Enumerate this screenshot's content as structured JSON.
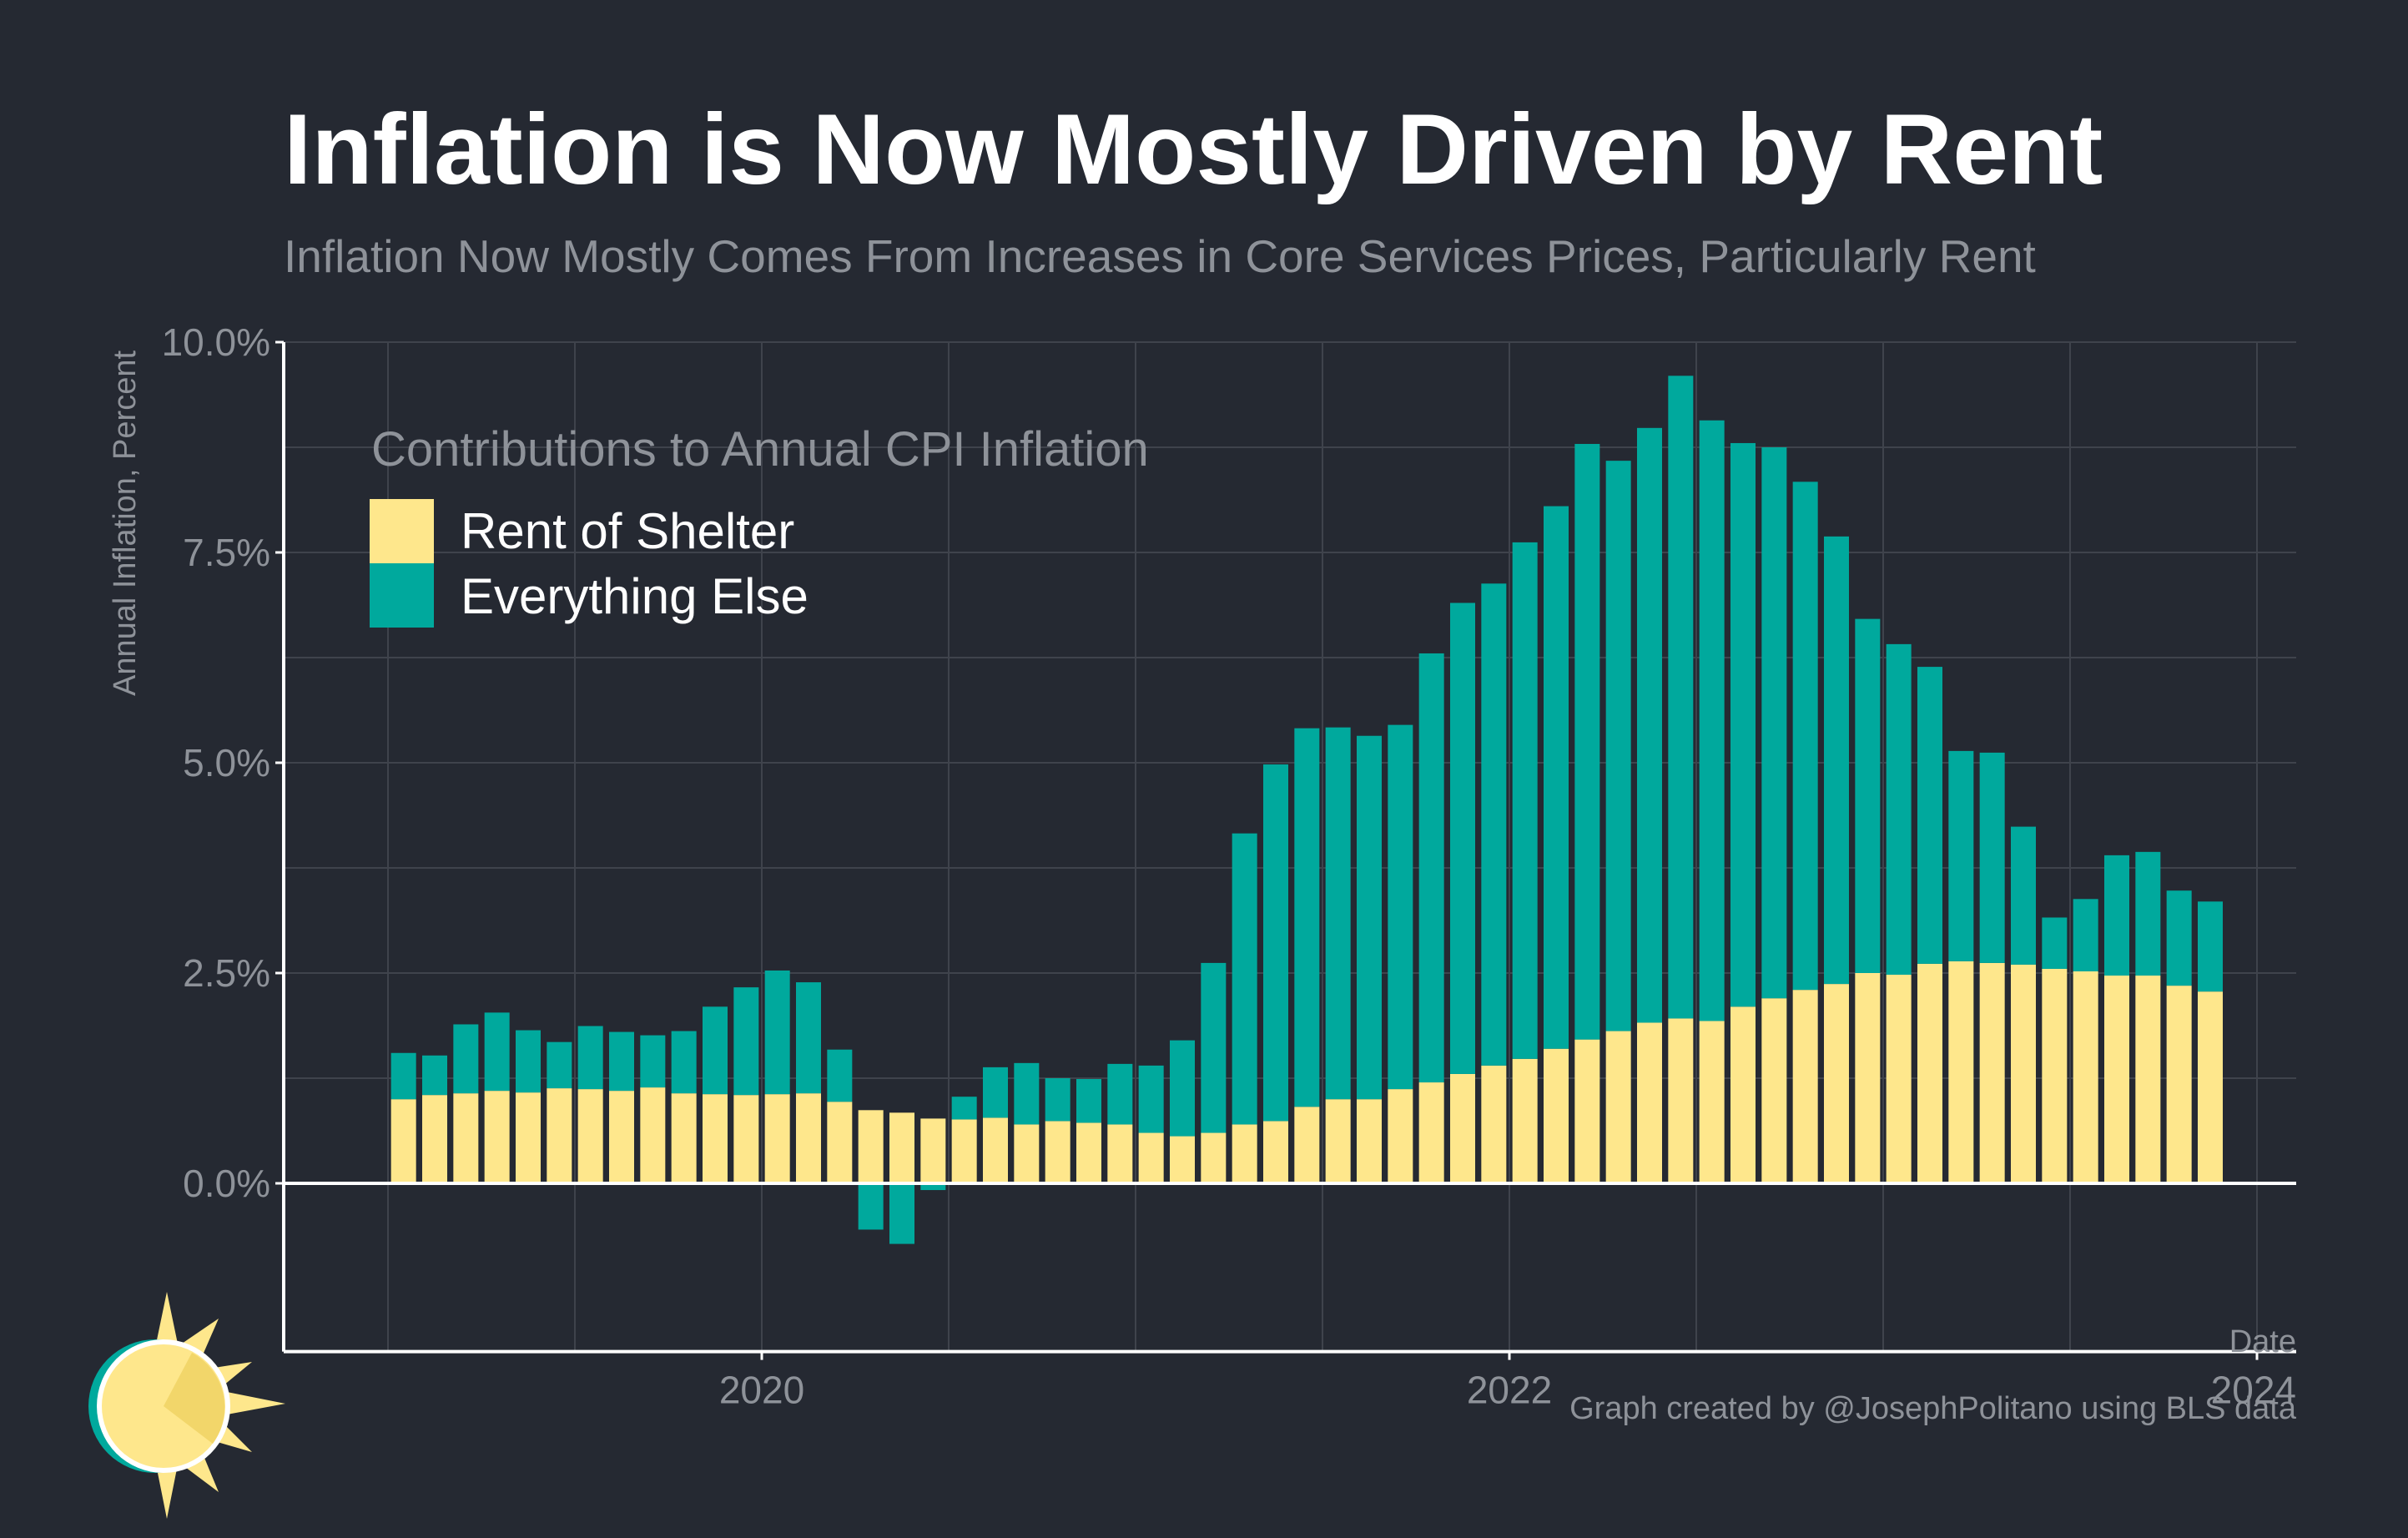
{
  "title": "Inflation is Now Mostly Driven by Rent",
  "subtitle": "Inflation Now Mostly Comes From Increases in Core Services Prices, Particularly Rent",
  "credit": "Graph created by @JosephPolitano using BLS data",
  "logo": "sun-logo-icon",
  "colors": {
    "background": "#252932",
    "rent": "#FEE78C",
    "other": "#00A99D",
    "grid": "#3F434C",
    "axis": "#FFFFFF",
    "muted_text": "#8E9299",
    "title_text": "#FFFFFF"
  },
  "chart_data": {
    "type": "bar",
    "stacked": true,
    "xlabel": "Date",
    "ylabel": "Annual Inflation, Percent",
    "ylim": [
      -2.0,
      10.0
    ],
    "y_ticks": [
      0.0,
      2.5,
      5.0,
      7.5,
      10.0
    ],
    "y_tick_labels": [
      "0.0%",
      "2.5%",
      "5.0%",
      "7.5%",
      "10.0%"
    ],
    "x_ticks": [
      "2020-01-01",
      "2022-01-01",
      "2024-01-01"
    ],
    "x_tick_labels": [
      "2020",
      "2022",
      "2024"
    ],
    "grid": true,
    "legend": {
      "title": "Contributions to Annual CPI Inflation",
      "placement": "top-left",
      "entries": [
        "Rent of Shelter",
        "Everything Else"
      ]
    },
    "categories": [
      "2019-01",
      "2019-02",
      "2019-03",
      "2019-04",
      "2019-05",
      "2019-06",
      "2019-07",
      "2019-08",
      "2019-09",
      "2019-10",
      "2019-11",
      "2019-12",
      "2020-01",
      "2020-02",
      "2020-03",
      "2020-04",
      "2020-05",
      "2020-06",
      "2020-07",
      "2020-08",
      "2020-09",
      "2020-10",
      "2020-11",
      "2020-12",
      "2021-01",
      "2021-02",
      "2021-03",
      "2021-04",
      "2021-05",
      "2021-06",
      "2021-07",
      "2021-08",
      "2021-09",
      "2021-10",
      "2021-11",
      "2021-12",
      "2022-01",
      "2022-02",
      "2022-03",
      "2022-04",
      "2022-05",
      "2022-06",
      "2022-07",
      "2022-08",
      "2022-09",
      "2022-10",
      "2022-11",
      "2022-12",
      "2023-01",
      "2023-02",
      "2023-03",
      "2023-04",
      "2023-05",
      "2023-06",
      "2023-07",
      "2023-08",
      "2023-09",
      "2023-10",
      "2023-11"
    ],
    "series": [
      {
        "name": "Rent of Shelter",
        "values": [
          1.0,
          1.05,
          1.07,
          1.1,
          1.08,
          1.13,
          1.12,
          1.1,
          1.14,
          1.07,
          1.06,
          1.05,
          1.06,
          1.07,
          0.97,
          0.87,
          0.84,
          0.77,
          0.76,
          0.78,
          0.7,
          0.74,
          0.72,
          0.7,
          0.6,
          0.56,
          0.6,
          0.7,
          0.74,
          0.91,
          1.0,
          1.0,
          1.12,
          1.2,
          1.3,
          1.4,
          1.48,
          1.6,
          1.71,
          1.81,
          1.91,
          1.96,
          1.93,
          2.1,
          2.2,
          2.3,
          2.37,
          2.5,
          2.48,
          2.61,
          2.64,
          2.62,
          2.6,
          2.55,
          2.52,
          2.47,
          2.47,
          2.35,
          2.28
        ]
      },
      {
        "name": "Everything Else",
        "values": [
          0.55,
          0.47,
          0.82,
          0.93,
          0.74,
          0.55,
          0.75,
          0.7,
          0.62,
          0.74,
          1.04,
          1.28,
          1.47,
          1.32,
          0.62,
          -0.55,
          -0.72,
          -0.08,
          0.27,
          0.6,
          0.73,
          0.51,
          0.52,
          0.72,
          0.8,
          1.14,
          2.02,
          3.46,
          4.24,
          4.5,
          4.42,
          4.32,
          4.33,
          5.1,
          5.6,
          5.73,
          6.14,
          6.45,
          7.08,
          6.78,
          7.07,
          7.64,
          7.14,
          6.7,
          6.55,
          6.04,
          5.32,
          4.21,
          3.93,
          3.53,
          2.5,
          2.5,
          1.64,
          0.61,
          0.86,
          1.43,
          1.47,
          1.13,
          1.07
        ]
      }
    ]
  }
}
